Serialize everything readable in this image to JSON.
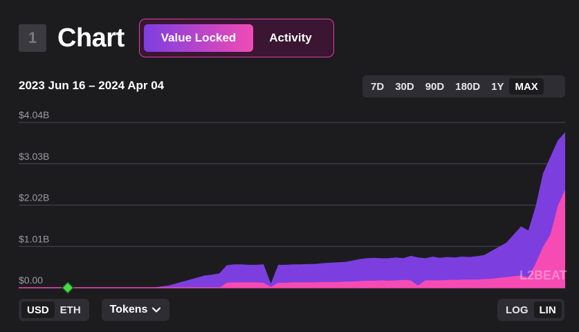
{
  "header": {
    "section_number": "1",
    "title": "Chart",
    "modes": [
      "Value Locked",
      "Activity"
    ],
    "active_mode": "Value Locked"
  },
  "date_range": "2023 Jun 16 – 2024 Apr 04",
  "ranges": [
    "7D",
    "30D",
    "90D",
    "180D",
    "1Y",
    "MAX"
  ],
  "active_range": "MAX",
  "currency": {
    "options": [
      "USD",
      "ETH"
    ],
    "active": "USD"
  },
  "tokens_label": "Tokens",
  "scale": {
    "options": [
      "LOG",
      "LIN"
    ],
    "active": "LIN"
  },
  "watermark": "L2BEAT",
  "colors": {
    "total": "#7d3ee0",
    "part": "#f74bb4",
    "milestone": "#4ad94a"
  },
  "chart_data": {
    "type": "area",
    "ylabel": "",
    "y_tick_labels": [
      "$0.00",
      "$1.01B",
      "$2.02B",
      "$3.03B",
      "$4.04B"
    ],
    "ylim": [
      0,
      4.04
    ],
    "y_unit": "$B",
    "x_range": [
      "2023-06-16",
      "2024-04-04"
    ],
    "series": [
      {
        "values": [
          0,
          0,
          0,
          0,
          0,
          0,
          0,
          0,
          0.03,
          0.05,
          0.1,
          0.15,
          0.2,
          0.25,
          0.3,
          0.32,
          0.35,
          0.55,
          0.57,
          0.57,
          0.56,
          0.56,
          0.57,
          0.1,
          0.56,
          0.56,
          0.57,
          0.57,
          0.58,
          0.58,
          0.6,
          0.61,
          0.62,
          0.63,
          0.66,
          0.7,
          0.72,
          0.73,
          0.72,
          0.72,
          0.74,
          0.72,
          0.78,
          0.74,
          0.72,
          0.76,
          0.73,
          0.75,
          0.74,
          0.76,
          0.75,
          0.77,
          0.8,
          0.9,
          1.0,
          1.1,
          1.3,
          1.5,
          1.4,
          2.0,
          2.8,
          3.2,
          3.6,
          3.8
        ]
      },
      {
        "values": [
          0,
          0,
          0,
          0,
          0,
          0,
          0,
          0,
          0,
          0,
          0,
          0,
          0,
          0,
          0,
          0,
          0,
          0.12,
          0.13,
          0.13,
          0.13,
          0.13,
          0.12,
          0.02,
          0.12,
          0.12,
          0.13,
          0.13,
          0.13,
          0.13,
          0.14,
          0.14,
          0.14,
          0.15,
          0.15,
          0.16,
          0.17,
          0.17,
          0.18,
          0.17,
          0.18,
          0.19,
          0.18,
          0.05,
          0.18,
          0.18,
          0.18,
          0.19,
          0.19,
          0.2,
          0.2,
          0.2,
          0.21,
          0.22,
          0.24,
          0.26,
          0.28,
          0.3,
          0.25,
          0.6,
          1.0,
          1.3,
          2.0,
          2.4
        ]
      }
    ]
  }
}
